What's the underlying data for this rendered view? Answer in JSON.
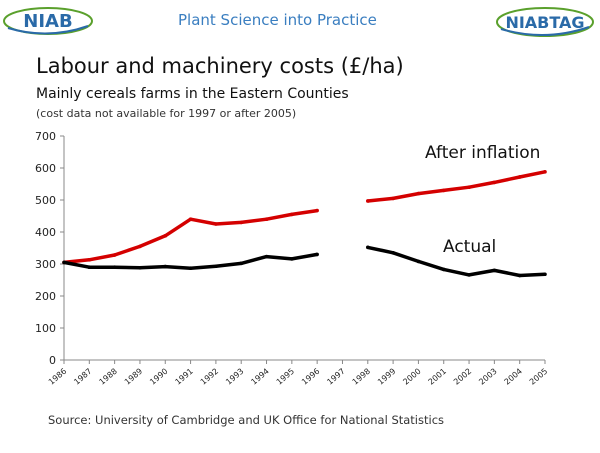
{
  "header": {
    "logo_text": "NIAB",
    "tagline": "Plant Science into Practice",
    "logo2_text": "NIABTAG"
  },
  "colors": {
    "after_inflation": "#d40000",
    "actual": "#000000",
    "tagline": "#3a7ec0",
    "logo": "#2a6aa8",
    "logo_green": "#5aa02c"
  },
  "chart_data": {
    "type": "line",
    "title": "Labour and machinery costs (£/ha)",
    "subtitle": "Mainly cereals farms in the Eastern Counties",
    "note": "(cost data not available for 1997 or after 2005)",
    "categories": [
      "1986",
      "1987",
      "1988",
      "1989",
      "1990",
      "1991",
      "1992",
      "1993",
      "1994",
      "1995",
      "1996",
      "1997",
      "1998",
      "1999",
      "2000",
      "2001",
      "2002",
      "2003",
      "2004",
      "2005"
    ],
    "ylim": [
      0,
      700
    ],
    "yticks": [
      0,
      100,
      200,
      300,
      400,
      500,
      600,
      700
    ],
    "grid": false,
    "series": [
      {
        "name": "After inflation",
        "color": "#d40000",
        "values": [
          305,
          313,
          328,
          355,
          388,
          440,
          425,
          430,
          440,
          455,
          467,
          null,
          497,
          505,
          520,
          530,
          540,
          555,
          572,
          588
        ]
      },
      {
        "name": "Actual",
        "color": "#000000",
        "values": [
          305,
          290,
          290,
          288,
          292,
          287,
          293,
          302,
          323,
          316,
          330,
          null,
          352,
          335,
          308,
          283,
          266,
          280,
          264,
          268
        ]
      }
    ]
  },
  "source": "Source: University of Cambridge and UK Office for National Statistics"
}
